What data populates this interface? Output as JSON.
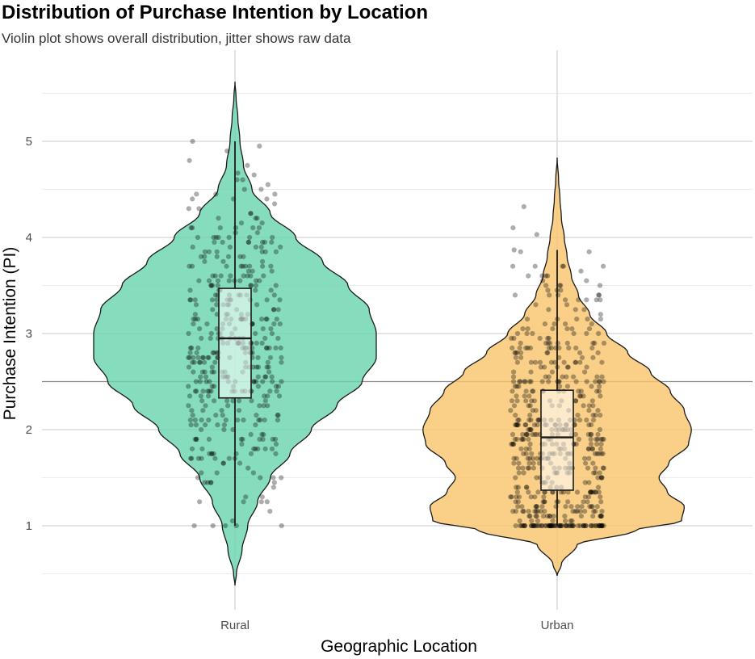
{
  "chart_data": {
    "type": "violin",
    "title": "Distribution of Purchase Intention by Location",
    "subtitle": "Violin plot shows overall distribution, jitter shows raw data",
    "xlabel": "Geographic Location",
    "ylabel": "Purchase Intention (PI)",
    "categories": [
      "Rural",
      "Urban"
    ],
    "ylim": [
      0.3,
      5.8
    ],
    "yticks": [
      1,
      2,
      3,
      4,
      5
    ],
    "reference_line_y": 2.5,
    "grid": true,
    "colors": {
      "Rural": "#66d4ad",
      "Urban": "#f9c46b"
    },
    "violins": [
      {
        "name": "Rural",
        "range": [
          0.38,
          5.62
        ],
        "density": [
          [
            0.38,
            0.0
          ],
          [
            0.5,
            0.01
          ],
          [
            0.75,
            0.05
          ],
          [
            1.0,
            0.09
          ],
          [
            1.25,
            0.16
          ],
          [
            1.5,
            0.25
          ],
          [
            1.75,
            0.39
          ],
          [
            2.0,
            0.54
          ],
          [
            2.25,
            0.72
          ],
          [
            2.5,
            0.9
          ],
          [
            2.75,
            1.0
          ],
          [
            3.0,
            1.0
          ],
          [
            3.25,
            0.95
          ],
          [
            3.5,
            0.8
          ],
          [
            3.75,
            0.62
          ],
          [
            4.0,
            0.43
          ],
          [
            4.25,
            0.25
          ],
          [
            4.5,
            0.12
          ],
          [
            4.75,
            0.06
          ],
          [
            5.0,
            0.035
          ],
          [
            5.25,
            0.02
          ],
          [
            5.45,
            0.008
          ],
          [
            5.62,
            0.0
          ]
        ],
        "box": {
          "min": 1.0,
          "q1": 2.33,
          "median": 2.95,
          "q3": 3.47,
          "max": 5.0
        }
      },
      {
        "name": "Urban",
        "range": [
          0.48,
          4.83
        ],
        "density": [
          [
            0.48,
            0.0
          ],
          [
            0.6,
            0.03
          ],
          [
            0.8,
            0.14
          ],
          [
            0.95,
            0.55
          ],
          [
            1.05,
            0.88
          ],
          [
            1.2,
            0.9
          ],
          [
            1.35,
            0.78
          ],
          [
            1.5,
            0.72
          ],
          [
            1.65,
            0.79
          ],
          [
            1.85,
            0.93
          ],
          [
            2.0,
            0.95
          ],
          [
            2.2,
            0.9
          ],
          [
            2.4,
            0.8
          ],
          [
            2.6,
            0.66
          ],
          [
            2.8,
            0.5
          ],
          [
            3.0,
            0.35
          ],
          [
            3.2,
            0.23
          ],
          [
            3.4,
            0.15
          ],
          [
            3.6,
            0.1
          ],
          [
            3.8,
            0.07
          ],
          [
            4.0,
            0.05
          ],
          [
            4.2,
            0.03
          ],
          [
            4.4,
            0.02
          ],
          [
            4.6,
            0.01
          ],
          [
            4.83,
            0.0
          ]
        ],
        "box": {
          "min": 1.0,
          "q1": 1.37,
          "median": 1.92,
          "q3": 2.41,
          "max": 3.87
        }
      }
    ],
    "jitter": [
      {
        "name": "Rural",
        "n": 420,
        "notable_points": [
          1.0,
          1.0,
          1.0,
          1.0,
          4.67,
          4.8,
          5.0
        ]
      },
      {
        "name": "Urban",
        "n": 560,
        "notable_points": [
          1.0,
          3.87,
          4.03,
          4.1,
          4.32
        ]
      }
    ]
  }
}
